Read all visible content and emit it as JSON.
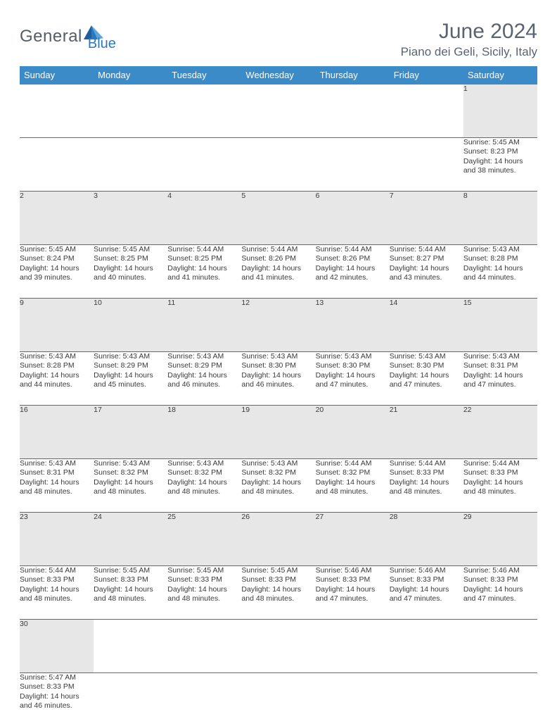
{
  "logo": {
    "general": "General",
    "blue": "Blue",
    "tri_colors": [
      "#1f5e9e",
      "#2d78bd",
      "#5aa7e0"
    ]
  },
  "header": {
    "month_title": "June 2024",
    "location": "Piano dei Geli, Sicily, Italy"
  },
  "theme": {
    "header_bg": "#3b8bc9",
    "row_divider": "#2d78bd",
    "daynum_bg": "#e7e7e7",
    "text_color": "#3a3a3a"
  },
  "day_names": [
    "Sunday",
    "Monday",
    "Tuesday",
    "Wednesday",
    "Thursday",
    "Friday",
    "Saturday"
  ],
  "weeks": [
    [
      null,
      null,
      null,
      null,
      null,
      null,
      {
        "n": "1",
        "sunrise": "Sunrise: 5:45 AM",
        "sunset": "Sunset: 8:23 PM",
        "d1": "Daylight: 14 hours",
        "d2": "and 38 minutes."
      }
    ],
    [
      {
        "n": "2",
        "sunrise": "Sunrise: 5:45 AM",
        "sunset": "Sunset: 8:24 PM",
        "d1": "Daylight: 14 hours",
        "d2": "and 39 minutes."
      },
      {
        "n": "3",
        "sunrise": "Sunrise: 5:45 AM",
        "sunset": "Sunset: 8:25 PM",
        "d1": "Daylight: 14 hours",
        "d2": "and 40 minutes."
      },
      {
        "n": "4",
        "sunrise": "Sunrise: 5:44 AM",
        "sunset": "Sunset: 8:25 PM",
        "d1": "Daylight: 14 hours",
        "d2": "and 41 minutes."
      },
      {
        "n": "5",
        "sunrise": "Sunrise: 5:44 AM",
        "sunset": "Sunset: 8:26 PM",
        "d1": "Daylight: 14 hours",
        "d2": "and 41 minutes."
      },
      {
        "n": "6",
        "sunrise": "Sunrise: 5:44 AM",
        "sunset": "Sunset: 8:26 PM",
        "d1": "Daylight: 14 hours",
        "d2": "and 42 minutes."
      },
      {
        "n": "7",
        "sunrise": "Sunrise: 5:44 AM",
        "sunset": "Sunset: 8:27 PM",
        "d1": "Daylight: 14 hours",
        "d2": "and 43 minutes."
      },
      {
        "n": "8",
        "sunrise": "Sunrise: 5:43 AM",
        "sunset": "Sunset: 8:28 PM",
        "d1": "Daylight: 14 hours",
        "d2": "and 44 minutes."
      }
    ],
    [
      {
        "n": "9",
        "sunrise": "Sunrise: 5:43 AM",
        "sunset": "Sunset: 8:28 PM",
        "d1": "Daylight: 14 hours",
        "d2": "and 44 minutes."
      },
      {
        "n": "10",
        "sunrise": "Sunrise: 5:43 AM",
        "sunset": "Sunset: 8:29 PM",
        "d1": "Daylight: 14 hours",
        "d2": "and 45 minutes."
      },
      {
        "n": "11",
        "sunrise": "Sunrise: 5:43 AM",
        "sunset": "Sunset: 8:29 PM",
        "d1": "Daylight: 14 hours",
        "d2": "and 46 minutes."
      },
      {
        "n": "12",
        "sunrise": "Sunrise: 5:43 AM",
        "sunset": "Sunset: 8:30 PM",
        "d1": "Daylight: 14 hours",
        "d2": "and 46 minutes."
      },
      {
        "n": "13",
        "sunrise": "Sunrise: 5:43 AM",
        "sunset": "Sunset: 8:30 PM",
        "d1": "Daylight: 14 hours",
        "d2": "and 47 minutes."
      },
      {
        "n": "14",
        "sunrise": "Sunrise: 5:43 AM",
        "sunset": "Sunset: 8:30 PM",
        "d1": "Daylight: 14 hours",
        "d2": "and 47 minutes."
      },
      {
        "n": "15",
        "sunrise": "Sunrise: 5:43 AM",
        "sunset": "Sunset: 8:31 PM",
        "d1": "Daylight: 14 hours",
        "d2": "and 47 minutes."
      }
    ],
    [
      {
        "n": "16",
        "sunrise": "Sunrise: 5:43 AM",
        "sunset": "Sunset: 8:31 PM",
        "d1": "Daylight: 14 hours",
        "d2": "and 48 minutes."
      },
      {
        "n": "17",
        "sunrise": "Sunrise: 5:43 AM",
        "sunset": "Sunset: 8:32 PM",
        "d1": "Daylight: 14 hours",
        "d2": "and 48 minutes."
      },
      {
        "n": "18",
        "sunrise": "Sunrise: 5:43 AM",
        "sunset": "Sunset: 8:32 PM",
        "d1": "Daylight: 14 hours",
        "d2": "and 48 minutes."
      },
      {
        "n": "19",
        "sunrise": "Sunrise: 5:43 AM",
        "sunset": "Sunset: 8:32 PM",
        "d1": "Daylight: 14 hours",
        "d2": "and 48 minutes."
      },
      {
        "n": "20",
        "sunrise": "Sunrise: 5:44 AM",
        "sunset": "Sunset: 8:32 PM",
        "d1": "Daylight: 14 hours",
        "d2": "and 48 minutes."
      },
      {
        "n": "21",
        "sunrise": "Sunrise: 5:44 AM",
        "sunset": "Sunset: 8:33 PM",
        "d1": "Daylight: 14 hours",
        "d2": "and 48 minutes."
      },
      {
        "n": "22",
        "sunrise": "Sunrise: 5:44 AM",
        "sunset": "Sunset: 8:33 PM",
        "d1": "Daylight: 14 hours",
        "d2": "and 48 minutes."
      }
    ],
    [
      {
        "n": "23",
        "sunrise": "Sunrise: 5:44 AM",
        "sunset": "Sunset: 8:33 PM",
        "d1": "Daylight: 14 hours",
        "d2": "and 48 minutes."
      },
      {
        "n": "24",
        "sunrise": "Sunrise: 5:45 AM",
        "sunset": "Sunset: 8:33 PM",
        "d1": "Daylight: 14 hours",
        "d2": "and 48 minutes."
      },
      {
        "n": "25",
        "sunrise": "Sunrise: 5:45 AM",
        "sunset": "Sunset: 8:33 PM",
        "d1": "Daylight: 14 hours",
        "d2": "and 48 minutes."
      },
      {
        "n": "26",
        "sunrise": "Sunrise: 5:45 AM",
        "sunset": "Sunset: 8:33 PM",
        "d1": "Daylight: 14 hours",
        "d2": "and 48 minutes."
      },
      {
        "n": "27",
        "sunrise": "Sunrise: 5:46 AM",
        "sunset": "Sunset: 8:33 PM",
        "d1": "Daylight: 14 hours",
        "d2": "and 47 minutes."
      },
      {
        "n": "28",
        "sunrise": "Sunrise: 5:46 AM",
        "sunset": "Sunset: 8:33 PM",
        "d1": "Daylight: 14 hours",
        "d2": "and 47 minutes."
      },
      {
        "n": "29",
        "sunrise": "Sunrise: 5:46 AM",
        "sunset": "Sunset: 8:33 PM",
        "d1": "Daylight: 14 hours",
        "d2": "and 47 minutes."
      }
    ],
    [
      {
        "n": "30",
        "sunrise": "Sunrise: 5:47 AM",
        "sunset": "Sunset: 8:33 PM",
        "d1": "Daylight: 14 hours",
        "d2": "and 46 minutes."
      },
      null,
      null,
      null,
      null,
      null,
      null
    ]
  ]
}
